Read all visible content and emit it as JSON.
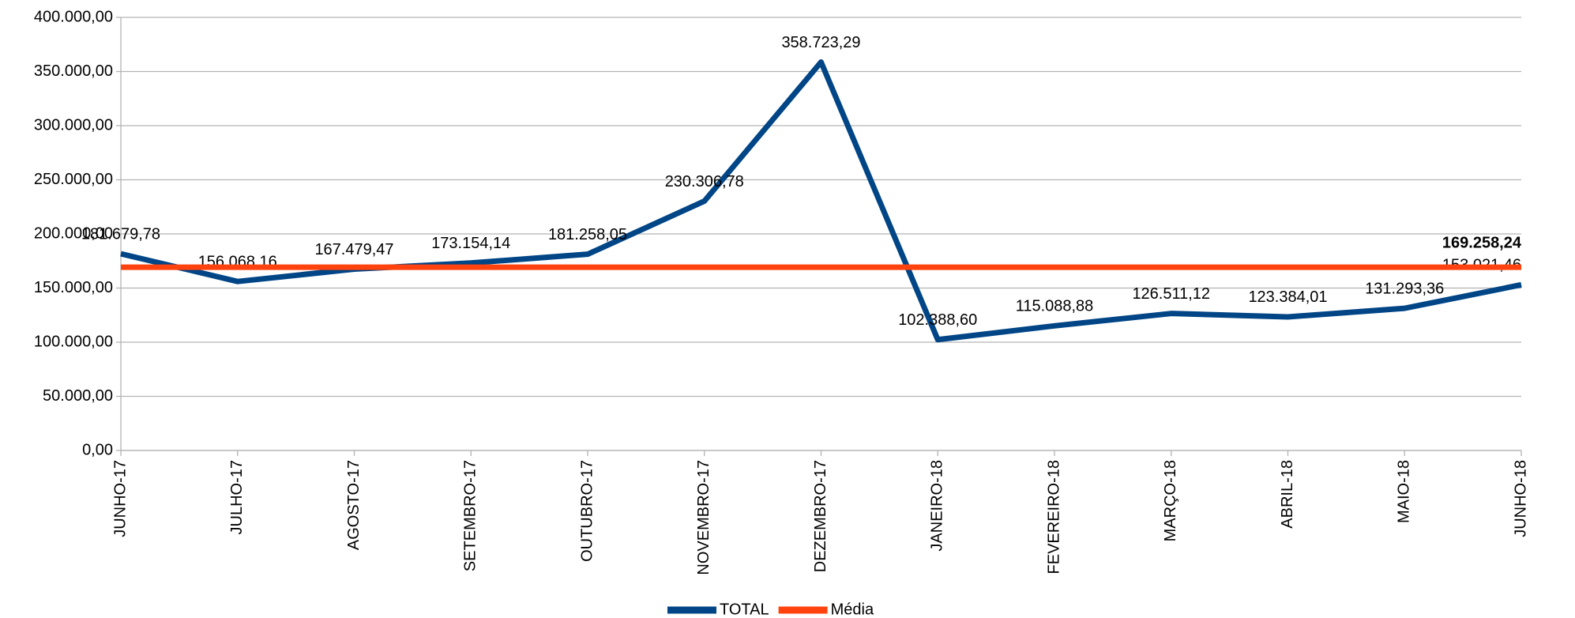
{
  "chart_data": {
    "type": "line",
    "categories": [
      "JUNHO-17",
      "JULHO-17",
      "AGOSTO-17",
      "SETEMBRO-17",
      "OUTUBRO-17",
      "NOVEMBRO-17",
      "DEZEMBRO-17",
      "JANEIRO-18",
      "FEVEREIRO-18",
      "MARÇO-18",
      "ABRIL-18",
      "MAIO-18",
      "JUNHO-18"
    ],
    "series": [
      {
        "name": "TOTAL",
        "color": "#004586",
        "values": [
          181679.78,
          156068.16,
          167479.47,
          173154.14,
          181258.05,
          230306.78,
          358723.29,
          102388.6,
          115088.88,
          126511.12,
          123384.01,
          131293.36,
          153021.46
        ],
        "value_labels": [
          "181.679,78",
          "156.068,16",
          "167.479,47",
          "173.154,14",
          "181.258,05",
          "230.306,78",
          "358.723,29",
          "102.388,60",
          "115.088,88",
          "126.511,12",
          "123.384,01",
          "131.293,36",
          "153.021,46"
        ]
      },
      {
        "name": "Média",
        "color": "#ff420e",
        "values": [
          169258.24,
          169258.24,
          169258.24,
          169258.24,
          169258.24,
          169258.24,
          169258.24,
          169258.24,
          169258.24,
          169258.24,
          169258.24,
          169258.24,
          169258.24
        ],
        "value_labels": [
          null,
          null,
          null,
          null,
          null,
          null,
          null,
          null,
          null,
          null,
          null,
          null,
          "169.258,24"
        ]
      }
    ],
    "ylim": [
      0,
      400000
    ],
    "yticks": [
      {
        "value": 0,
        "label": "0,00"
      },
      {
        "value": 50000,
        "label": "50.000,00"
      },
      {
        "value": 100000,
        "label": "100.000,00"
      },
      {
        "value": 150000,
        "label": "150.000,00"
      },
      {
        "value": 200000,
        "label": "200.000,00"
      },
      {
        "value": 250000,
        "label": "250.000,00"
      },
      {
        "value": 300000,
        "label": "300.000,00"
      },
      {
        "value": 350000,
        "label": "350.000,00"
      },
      {
        "value": 400000,
        "label": "400.000,00"
      }
    ],
    "grid": true,
    "legend": "bottom"
  }
}
